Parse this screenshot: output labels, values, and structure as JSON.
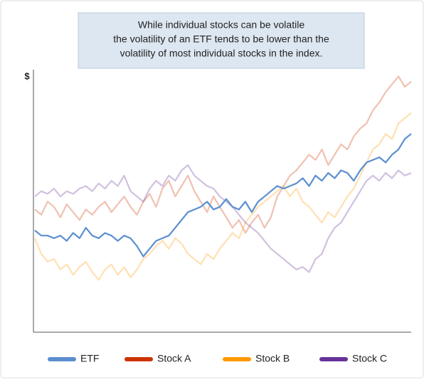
{
  "chart_data": {
    "type": "line",
    "annotation": [
      "While individual stocks can be volatile",
      "the volatility of an ETF tends to be lower than the",
      "volatility of most individual stocks in the index."
    ],
    "ylabel": "$",
    "categories": [
      null,
      null,
      null,
      null,
      null,
      null,
      null,
      null,
      null,
      null,
      null,
      null,
      null,
      null,
      null,
      null,
      null,
      null,
      null,
      null,
      null,
      null,
      null,
      null,
      null,
      null,
      null,
      null,
      null,
      null,
      null,
      null,
      null,
      null,
      null,
      null,
      null,
      null,
      null,
      null,
      null,
      null,
      null,
      null,
      null,
      null,
      null,
      null,
      null,
      null,
      null,
      null,
      null,
      null,
      null,
      null,
      null,
      null,
      null,
      null
    ],
    "ylim": [
      0,
      100
    ],
    "series": [
      {
        "name": "Stock A",
        "color": "#cc3300",
        "opacity": 0.3,
        "values": [
          47,
          45,
          50,
          48,
          44,
          49,
          46,
          43,
          47,
          45,
          48,
          50,
          46,
          49,
          52,
          48,
          45,
          50,
          53,
          48,
          55,
          58,
          52,
          56,
          60,
          54,
          50,
          46,
          52,
          48,
          44,
          40,
          43,
          38,
          42,
          45,
          40,
          44,
          52,
          56,
          60,
          62,
          65,
          68,
          66,
          70,
          64,
          68,
          72,
          70,
          75,
          78,
          80,
          85,
          88,
          92,
          95,
          98,
          94,
          96
        ]
      },
      {
        "name": "Stock B",
        "color": "#ff9900",
        "opacity": 0.3,
        "values": [
          36,
          30,
          27,
          28,
          24,
          26,
          22,
          25,
          27,
          23,
          20,
          24,
          26,
          22,
          25,
          21,
          24,
          28,
          30,
          33,
          35,
          32,
          36,
          34,
          30,
          28,
          26,
          30,
          28,
          32,
          35,
          38,
          36,
          42,
          45,
          48,
          50,
          52,
          54,
          56,
          52,
          55,
          50,
          48,
          45,
          42,
          46,
          44,
          48,
          52,
          55,
          60,
          65,
          70,
          72,
          76,
          74,
          80,
          82,
          84
        ]
      },
      {
        "name": "Stock C",
        "color": "#663399",
        "opacity": 0.3,
        "values": [
          52,
          54,
          53,
          55,
          52,
          54,
          53,
          55,
          56,
          54,
          57,
          55,
          58,
          56,
          60,
          54,
          52,
          50,
          55,
          58,
          56,
          60,
          58,
          62,
          64,
          60,
          58,
          56,
          55,
          52,
          50,
          48,
          45,
          42,
          40,
          38,
          35,
          32,
          30,
          28,
          26,
          24,
          25,
          23,
          28,
          30,
          36,
          40,
          42,
          46,
          50,
          54,
          58,
          60,
          58,
          61,
          59,
          62,
          60,
          61
        ]
      },
      {
        "name": "ETF",
        "color": "#5b8fd0",
        "opacity": 1,
        "values": [
          39,
          37,
          37,
          36,
          37,
          35,
          38,
          36,
          40,
          37,
          36,
          38,
          37,
          35,
          37,
          36,
          33,
          29,
          32,
          35,
          36,
          37,
          40,
          43,
          46,
          47,
          48,
          50,
          47,
          48,
          51,
          48,
          47,
          50,
          46,
          50,
          52,
          54,
          56,
          55,
          56,
          57,
          59,
          56,
          60,
          58,
          61,
          59,
          62,
          61,
          58,
          62,
          65,
          66,
          67,
          65,
          68,
          70,
          74,
          76
        ]
      }
    ]
  }
}
